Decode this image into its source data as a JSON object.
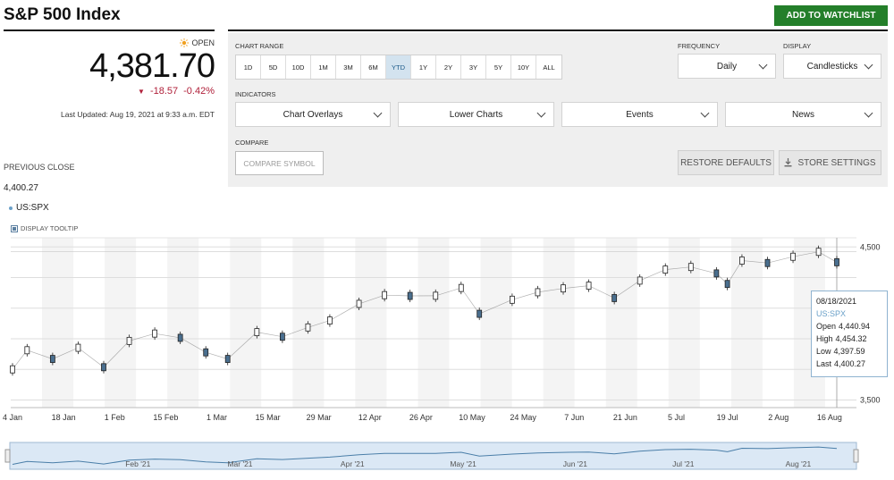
{
  "header": {
    "title": "S&P 500 Index",
    "watchlist_label": "ADD TO WATCHLIST"
  },
  "quote": {
    "status": "OPEN",
    "price": "4,381.70",
    "change": "-18.57",
    "change_pct": "-0.42%",
    "last_updated": "Last Updated: Aug 19, 2021 at 9:33 a.m. EDT",
    "previous_close_label": "PREVIOUS CLOSE",
    "previous_close": "4,400.27",
    "symbol": "US:SPX",
    "display_tooltip_label": "DISPLAY TOOLTIP"
  },
  "controls": {
    "chart_range_label": "CHART RANGE",
    "ranges": [
      "1D",
      "5D",
      "10D",
      "1M",
      "3M",
      "6M",
      "YTD",
      "1Y",
      "2Y",
      "3Y",
      "5Y",
      "10Y",
      "ALL"
    ],
    "active_range": "YTD",
    "frequency_label": "FREQUENCY",
    "frequency_value": "Daily",
    "display_label": "DISPLAY",
    "display_value": "Candlesticks",
    "indicators_label": "INDICATORS",
    "indicators": [
      "Chart Overlays",
      "Lower Charts",
      "Events",
      "News"
    ],
    "compare_label": "COMPARE",
    "compare_placeholder": "COMPARE SYMBOL",
    "restore_label": "RESTORE DEFAULTS",
    "store_label": "STORE SETTINGS"
  },
  "tooltip": {
    "date": "08/18/2021",
    "symbol": "US:SPX",
    "open_label": "Open",
    "open": "4,440.94",
    "high_label": "High",
    "high": "4,454.32",
    "low_label": "Low",
    "low": "4,397.59",
    "last_label": "Last",
    "last": "4,400.27"
  },
  "colors": {
    "accent_green": "#247f2a",
    "negative": "#b0203a",
    "series_blue": "#6aa0c8",
    "candle_down": "#4a6f8f"
  },
  "chart_data": {
    "type": "line",
    "title": "",
    "xlabel": "",
    "ylabel": "",
    "x_ticks": [
      "4 Jan",
      "18 Jan",
      "1 Feb",
      "15 Feb",
      "1 Mar",
      "15 Mar",
      "29 Mar",
      "12 Apr",
      "26 Apr",
      "10 May",
      "24 May",
      "7 Jun",
      "21 Jun",
      "5 Jul",
      "19 Jul",
      "2 Aug",
      "16 Aug"
    ],
    "y_ticks": [
      4500,
      3500
    ],
    "ylim": [
      3450,
      4560
    ],
    "grid": true,
    "navigator_labels": [
      "Feb '21",
      "Mar '21",
      "Apr '21",
      "May '21",
      "Jun '21",
      "Jul '21",
      "Aug '21"
    ],
    "series": [
      {
        "x": [
          "2021-01-04",
          "2021-01-08",
          "2021-01-15",
          "2021-01-22",
          "2021-01-29",
          "2021-02-05",
          "2021-02-12",
          "2021-02-19",
          "2021-02-26",
          "2021-03-04",
          "2021-03-12",
          "2021-03-19",
          "2021-03-26",
          "2021-04-01",
          "2021-04-09",
          "2021-04-16",
          "2021-04-23",
          "2021-04-30",
          "2021-05-07",
          "2021-05-12",
          "2021-05-21",
          "2021-05-28",
          "2021-06-04",
          "2021-06-11",
          "2021-06-18",
          "2021-06-25",
          "2021-07-02",
          "2021-07-09",
          "2021-07-16",
          "2021-07-19",
          "2021-07-23",
          "2021-07-30",
          "2021-08-06",
          "2021-08-13",
          "2021-08-18"
        ],
        "values": [
          3700,
          3825,
          3768,
          3841,
          3714,
          3886,
          3934,
          3906,
          3811,
          3768,
          3943,
          3913,
          3974,
          4019,
          4128,
          4185,
          4180,
          4181,
          4232,
          4063,
          4155,
          4204,
          4229,
          4247,
          4166,
          4280,
          4352,
          4369,
          4327,
          4258,
          4411,
          4395,
          4436,
          4468,
          4400
        ]
      }
    ]
  }
}
